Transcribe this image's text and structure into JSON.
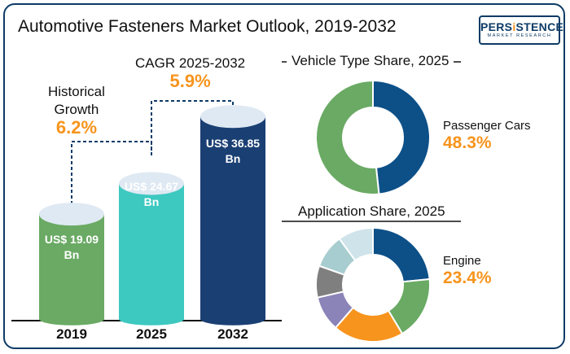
{
  "title": "Automotive Fasteners Market Outlook, 2019-2032",
  "logo": {
    "brand_pre": "PERS",
    "brand_accent": "i",
    "brand_post": "STENCE",
    "tagline": "MARKET RESEARCH"
  },
  "colors": {
    "navy": "#0d3b66",
    "orange": "#f7941d",
    "green": "#6aaa64",
    "teal": "#3dc8c0",
    "cap": "#dfe9f3"
  },
  "annotations": {
    "historical_label_line1": "Historical",
    "historical_label_line2": "Growth",
    "historical_value": "6.2%",
    "cagr_label": "CAGR 2025-2032",
    "cagr_value": "5.9%"
  },
  "chart_data": [
    {
      "type": "bar",
      "categories": [
        "2019",
        "2025",
        "2032"
      ],
      "values": [
        19.09,
        24.67,
        36.85
      ],
      "labels": [
        "US$ 19.09 Bn",
        "US$ 24.67 Bn",
        "US$ 36.85 Bn"
      ],
      "label_lines": [
        [
          "US$ 19.09",
          "Bn"
        ],
        [
          "US$ 24.67",
          "Bn"
        ],
        [
          "US$ 36.85",
          "Bn"
        ]
      ],
      "colors": [
        "#6aaa64",
        "#3dc8c0",
        "#1a3f73"
      ],
      "title": "",
      "xlabel": "",
      "ylabel": ""
    },
    {
      "type": "pie",
      "title": "Vehicle Type Share, 2025",
      "values": [
        48.3,
        51.7
      ],
      "colors": [
        "#0d5088",
        "#6aaa64"
      ],
      "highlight_label": "Passenger Cars",
      "highlight_value": "48.3%"
    },
    {
      "type": "pie",
      "title": "Application Share, 2025",
      "values": [
        23.4,
        18,
        20,
        10,
        9,
        9.6,
        10
      ],
      "colors": [
        "#0d5088",
        "#6aaa64",
        "#f7941d",
        "#8b84b8",
        "#7f7f7f",
        "#a8cdd1",
        "#cfe3ea"
      ],
      "highlight_label": "Engine",
      "highlight_value": "23.4%"
    }
  ]
}
